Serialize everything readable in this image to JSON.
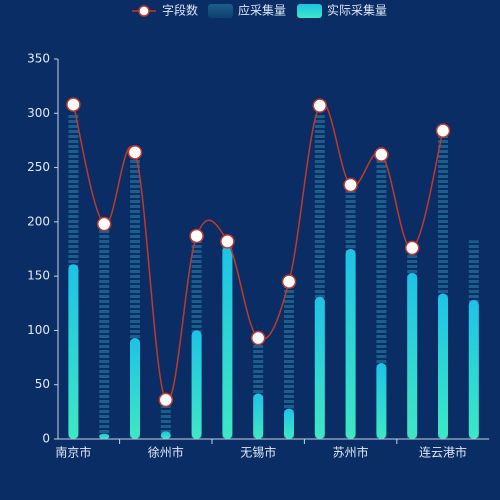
{
  "chart_data": {
    "type": "bar-line",
    "categories": [
      "南京市",
      null,
      null,
      "徐州市",
      null,
      null,
      "无锡市",
      null,
      null,
      "苏州市",
      null,
      null,
      "连云港市",
      null
    ],
    "series": [
      {
        "name": "字段数",
        "type": "line",
        "color": "#c0392b",
        "values": [
          308,
          198,
          264,
          36,
          187,
          182,
          93,
          145,
          307,
          234,
          262,
          176,
          284,
          null
        ]
      },
      {
        "name": "应采集量",
        "type": "bar",
        "color": "#1b5f8c",
        "values": [
          300,
          195,
          260,
          30,
          185,
          180,
          90,
          140,
          300,
          230,
          258,
          172,
          280,
          183
        ]
      },
      {
        "name": "实际采集量",
        "type": "bar",
        "color": "#22d3dc",
        "values": [
          161,
          5,
          93,
          7,
          100,
          178,
          42,
          28,
          131,
          175,
          70,
          153,
          134,
          128
        ]
      }
    ],
    "ylim": [
      0,
      350
    ],
    "yticks": [
      0,
      50,
      100,
      150,
      200,
      250,
      300,
      350
    ]
  }
}
